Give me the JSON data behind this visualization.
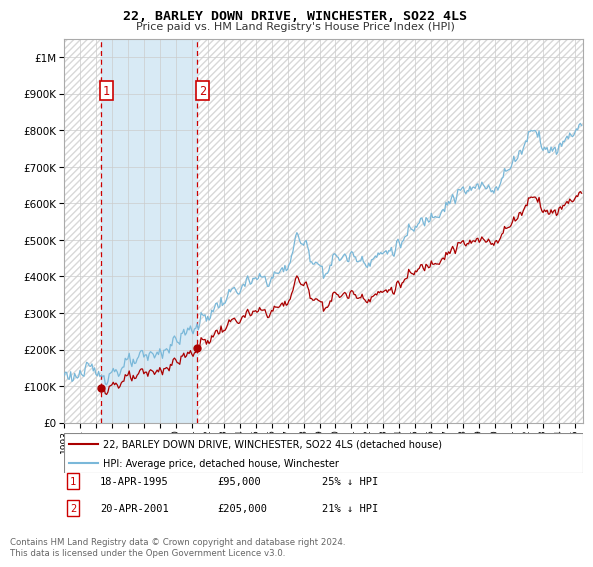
{
  "title": "22, BARLEY DOWN DRIVE, WINCHESTER, SO22 4LS",
  "subtitle": "Price paid vs. HM Land Registry's House Price Index (HPI)",
  "footer": "Contains HM Land Registry data © Crown copyright and database right 2024.\nThis data is licensed under the Open Government Licence v3.0.",
  "legend_line1": "22, BARLEY DOWN DRIVE, WINCHESTER, SO22 4LS (detached house)",
  "legend_line2": "HPI: Average price, detached house, Winchester",
  "table_rows": [
    {
      "num": "1",
      "date": "18-APR-1995",
      "price": "£95,000",
      "note": "25% ↓ HPI"
    },
    {
      "num": "2",
      "date": "20-APR-2001",
      "price": "£205,000",
      "note": "21% ↓ HPI"
    }
  ],
  "sale1_x": 1995.29,
  "sale1_y": 95000,
  "sale2_x": 2001.3,
  "sale2_y": 205000,
  "vline1_x": 1995.29,
  "vline2_x": 2001.3,
  "hpi_color": "#7ab8d9",
  "price_color": "#aa0000",
  "vline_color": "#cc0000",
  "shade_color": "#d8eaf5",
  "background_color": "#ffffff",
  "grid_color": "#cccccc",
  "hatch_color": "#d8d8d8",
  "ylim": [
    0,
    1050000
  ],
  "xlim": [
    1993.0,
    2025.5
  ],
  "yticks": [
    0,
    100000,
    200000,
    300000,
    400000,
    500000,
    600000,
    700000,
    800000,
    900000,
    1000000
  ],
  "xticks": [
    1993,
    1994,
    1995,
    1996,
    1997,
    1998,
    1999,
    2000,
    2001,
    2002,
    2003,
    2004,
    2005,
    2006,
    2007,
    2008,
    2009,
    2010,
    2011,
    2012,
    2013,
    2014,
    2015,
    2016,
    2017,
    2018,
    2019,
    2020,
    2021,
    2022,
    2023,
    2024,
    2025
  ]
}
